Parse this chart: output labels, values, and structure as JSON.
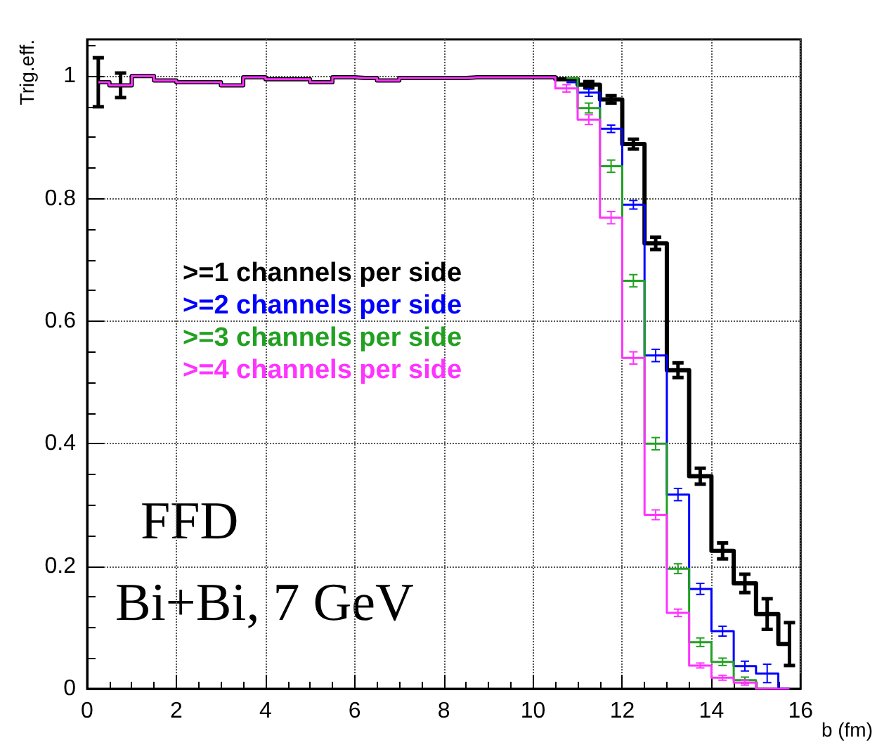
{
  "chart_data": {
    "type": "step",
    "xlabel": "b (fm)",
    "ylabel": "Trig.eff.",
    "x": [
      0.25,
      0.75,
      1.25,
      1.75,
      2.25,
      2.75,
      3.25,
      3.75,
      4.25,
      4.75,
      5.25,
      5.75,
      6.25,
      6.75,
      7.25,
      7.75,
      8.25,
      8.75,
      9.25,
      9.75,
      10.25,
      10.75,
      11.25,
      11.75,
      12.25,
      12.75,
      13.25,
      13.75,
      14.25,
      14.75,
      15.25,
      15.75
    ],
    "series": [
      {
        "name": ">=1 channels per side",
        "color": "#000000",
        "values": [
          0.99,
          0.985,
          1.0,
          0.993,
          0.99,
          0.99,
          0.985,
          0.998,
          0.995,
          0.995,
          0.99,
          0.998,
          0.997,
          0.993,
          0.997,
          0.997,
          0.997,
          0.998,
          0.998,
          0.998,
          0.998,
          0.995,
          0.986,
          0.962,
          0.889,
          0.727,
          0.52,
          0.347,
          0.225,
          0.172,
          0.122,
          0.073
        ],
        "errors": [
          0.04,
          0.02,
          null,
          null,
          null,
          null,
          null,
          null,
          null,
          null,
          null,
          null,
          null,
          null,
          null,
          null,
          null,
          null,
          null,
          null,
          null,
          null,
          0.005,
          0.006,
          0.008,
          0.01,
          0.012,
          0.013,
          0.013,
          0.015,
          0.025,
          0.035
        ]
      },
      {
        "name": ">=2 channels per side",
        "color": "#0000ff",
        "values": [
          null,
          null,
          null,
          null,
          null,
          null,
          null,
          null,
          null,
          null,
          null,
          null,
          null,
          null,
          null,
          null,
          null,
          null,
          null,
          null,
          null,
          0.99,
          0.973,
          0.914,
          0.79,
          0.544,
          0.317,
          0.163,
          0.094,
          0.037,
          0.025,
          0
        ],
        "errors": [
          null,
          null,
          null,
          null,
          null,
          null,
          null,
          null,
          null,
          null,
          null,
          null,
          null,
          null,
          null,
          null,
          null,
          null,
          null,
          null,
          null,
          null,
          0.006,
          0.006,
          0.007,
          0.01,
          0.01,
          0.009,
          0.008,
          0.008,
          0.015,
          null
        ]
      },
      {
        "name": ">=3 channels per side",
        "color": "#22a022",
        "values": [
          null,
          null,
          null,
          null,
          null,
          null,
          null,
          null,
          null,
          null,
          null,
          null,
          null,
          null,
          null,
          null,
          null,
          null,
          null,
          null,
          null,
          0.997,
          0.948,
          0.853,
          0.666,
          0.4,
          0.196,
          0.076,
          0.044,
          0.014,
          0,
          null
        ],
        "errors": [
          null,
          null,
          null,
          null,
          null,
          null,
          null,
          null,
          null,
          null,
          null,
          null,
          null,
          null,
          null,
          null,
          null,
          null,
          null,
          null,
          null,
          null,
          0.008,
          0.01,
          0.01,
          0.01,
          0.008,
          0.007,
          0.006,
          0.005,
          null,
          null
        ]
      },
      {
        "name": ">=4 channels per side",
        "color": "#ff33ff",
        "values": [
          0.99,
          0.985,
          1.0,
          0.993,
          0.99,
          0.99,
          0.985,
          0.998,
          0.995,
          0.995,
          0.99,
          0.998,
          0.997,
          0.993,
          0.997,
          0.997,
          0.997,
          0.998,
          0.998,
          0.998,
          0.998,
          0.98,
          0.929,
          0.769,
          0.54,
          0.284,
          0.124,
          0.038,
          0.018,
          0.01,
          0,
          0
        ],
        "errors": [
          null,
          null,
          null,
          null,
          null,
          null,
          null,
          null,
          null,
          null,
          null,
          null,
          null,
          null,
          null,
          null,
          null,
          null,
          null,
          null,
          null,
          0.006,
          0.008,
          0.01,
          0.01,
          0.008,
          0.006,
          0.004,
          0.004,
          0.004,
          null,
          null
        ]
      }
    ],
    "xlim": [
      0,
      16
    ],
    "xticks": [
      0,
      2,
      4,
      6,
      8,
      10,
      12,
      14,
      16
    ],
    "ylim": [
      0,
      1.06
    ],
    "yticks": [
      0,
      0.2,
      0.4,
      0.6,
      0.8,
      1
    ],
    "grid": true,
    "legend": "left",
    "annotations": [
      "FFD",
      "Bi+Bi, 7 GeV"
    ]
  }
}
